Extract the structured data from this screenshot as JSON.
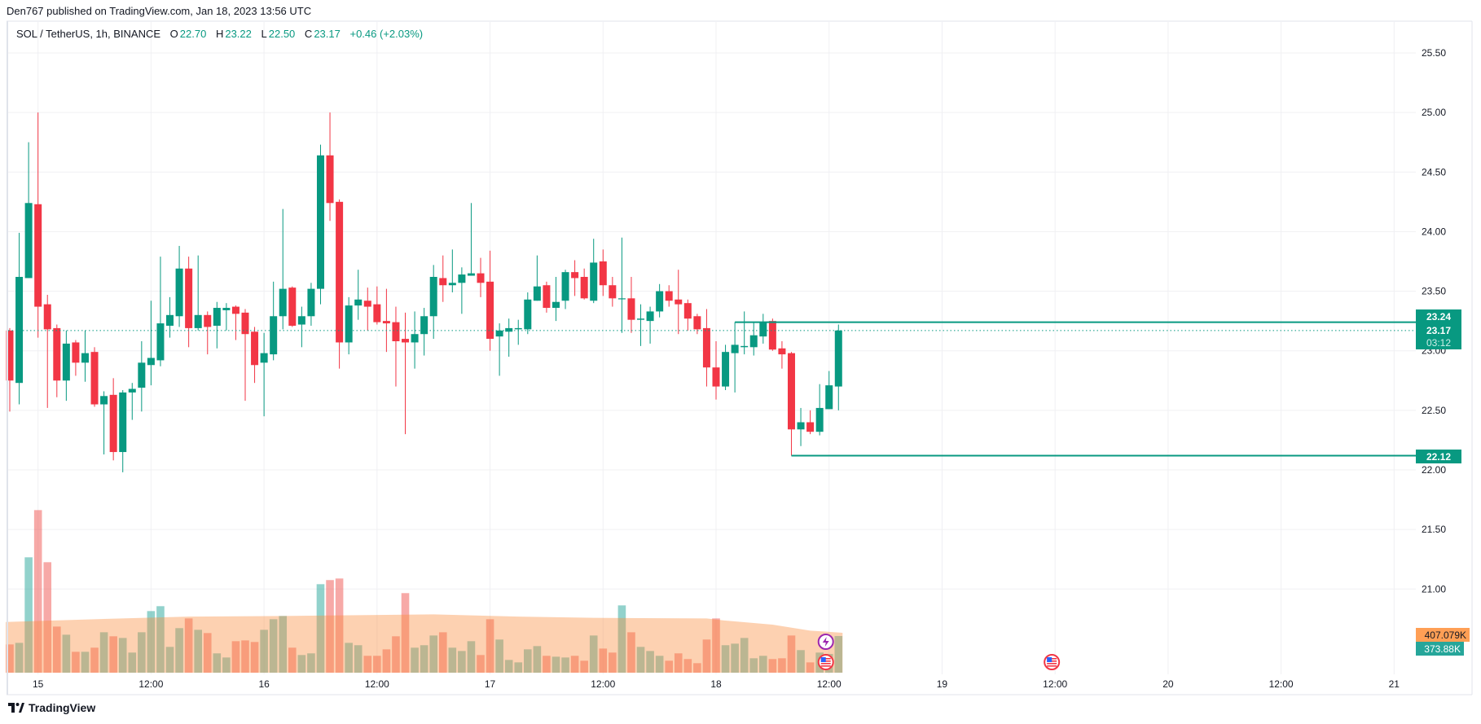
{
  "header": {
    "publisher_line": "Den767 published on TradingView.com, Jan 18, 2023 13:56 UTC"
  },
  "legend": {
    "symbol": "SOL / TetherUS, 1h, BINANCE",
    "open_key": "O",
    "open": "22.70",
    "high_key": "H",
    "high": "23.22",
    "low_key": "L",
    "low": "22.50",
    "close_key": "C",
    "close": "23.17",
    "change": "+0.46 (+2.03%)"
  },
  "price_labels": {
    "level_high": "23.24",
    "last_price": "23.17",
    "countdown": "03:12",
    "level_low": "22.12",
    "volume_ma": "407.079K",
    "volume_last": "373.88K"
  },
  "footer": {
    "brand": "TradingView"
  },
  "colors": {
    "up": "#089981",
    "down": "#f23645",
    "volume_up": "#26a69a",
    "volume_down": "#ef5350",
    "volume_ma_fill": "#fb8c3c",
    "label_ma": "#ff9f55",
    "label_volume": "#26a69a",
    "grid": "#f0f0f3"
  },
  "chart_data": {
    "type": "candlestick",
    "symbol": "SOL / TetherUS",
    "interval": "1h",
    "start_time": "2023-01-14 21:00",
    "ylim": [
      20.4,
      25.9
    ],
    "y_ticks": [
      "25.50",
      "25.00",
      "24.50",
      "24.00",
      "23.50",
      "23.00",
      "22.50",
      "22.00",
      "21.50",
      "21.00"
    ],
    "x_ticks": [
      {
        "t": "2023-01-15 00:00",
        "label": "15"
      },
      {
        "t": "2023-01-15 12:00",
        "label": "12:00"
      },
      {
        "t": "2023-01-16 00:00",
        "label": "16"
      },
      {
        "t": "2023-01-16 12:00",
        "label": "12:00"
      },
      {
        "t": "2023-01-17 00:00",
        "label": "17"
      },
      {
        "t": "2023-01-17 12:00",
        "label": "12:00"
      },
      {
        "t": "2023-01-18 00:00",
        "label": "18"
      },
      {
        "t": "2023-01-18 12:00",
        "label": "12:00"
      },
      {
        "t": "2023-01-19 00:00",
        "label": "19"
      },
      {
        "t": "2023-01-19 12:00",
        "label": "12:00"
      },
      {
        "t": "2023-01-20 00:00",
        "label": "20"
      },
      {
        "t": "2023-01-20 12:00",
        "label": "12:00"
      },
      {
        "t": "2023-01-21 00:00",
        "label": "21"
      }
    ],
    "grid": true,
    "ohlc": [
      [
        23.17,
        23.19,
        22.49,
        22.75
      ],
      [
        22.73,
        23.99,
        22.55,
        23.62
      ],
      [
        23.61,
        24.75,
        23.61,
        24.24
      ],
      [
        24.23,
        25.0,
        23.11,
        23.37
      ],
      [
        23.39,
        23.47,
        22.52,
        23.18
      ],
      [
        23.19,
        23.22,
        22.61,
        22.75
      ],
      [
        22.75,
        23.17,
        22.58,
        23.06
      ],
      [
        23.07,
        23.09,
        22.79,
        22.9
      ],
      [
        22.9,
        23.17,
        22.74,
        22.98
      ],
      [
        22.99,
        23.03,
        22.53,
        22.55
      ],
      [
        22.55,
        22.66,
        22.13,
        22.62
      ],
      [
        22.63,
        22.77,
        22.08,
        22.15
      ],
      [
        22.15,
        22.67,
        21.98,
        22.65
      ],
      [
        22.65,
        22.73,
        22.42,
        22.68
      ],
      [
        22.69,
        23.08,
        22.49,
        22.9
      ],
      [
        22.88,
        23.42,
        22.71,
        22.94
      ],
      [
        22.92,
        23.79,
        22.87,
        23.23
      ],
      [
        23.21,
        23.45,
        23.11,
        23.3
      ],
      [
        23.29,
        23.88,
        23.2,
        23.69
      ],
      [
        23.69,
        23.79,
        23.03,
        23.19
      ],
      [
        23.19,
        23.8,
        23.17,
        23.3
      ],
      [
        23.3,
        23.33,
        22.97,
        23.2
      ],
      [
        23.21,
        23.41,
        23.02,
        23.36
      ],
      [
        23.34,
        23.4,
        23.17,
        23.36
      ],
      [
        23.37,
        23.38,
        23.09,
        23.31
      ],
      [
        23.32,
        23.35,
        22.58,
        23.14
      ],
      [
        23.16,
        23.2,
        22.73,
        22.88
      ],
      [
        22.9,
        23.15,
        22.45,
        22.98
      ],
      [
        22.97,
        23.58,
        22.92,
        23.29
      ],
      [
        23.29,
        24.19,
        23.18,
        23.52
      ],
      [
        23.53,
        23.54,
        23.2,
        23.21
      ],
      [
        23.22,
        23.37,
        23.03,
        23.29
      ],
      [
        23.29,
        23.57,
        23.21,
        23.52
      ],
      [
        23.52,
        24.73,
        23.39,
        24.64
      ],
      [
        24.64,
        25.0,
        24.09,
        24.24
      ],
      [
        24.25,
        24.27,
        22.85,
        23.07
      ],
      [
        23.07,
        23.45,
        22.97,
        23.38
      ],
      [
        23.38,
        23.68,
        23.26,
        23.43
      ],
      [
        23.42,
        23.53,
        23.17,
        23.37
      ],
      [
        23.39,
        23.54,
        23.22,
        23.24
      ],
      [
        23.25,
        23.52,
        22.99,
        23.23
      ],
      [
        23.24,
        23.37,
        22.7,
        23.08
      ],
      [
        23.1,
        23.32,
        22.3,
        23.07
      ],
      [
        23.07,
        23.33,
        22.85,
        23.14
      ],
      [
        23.14,
        23.36,
        22.96,
        23.29
      ],
      [
        23.29,
        23.72,
        23.1,
        23.62
      ],
      [
        23.61,
        23.8,
        23.41,
        23.55
      ],
      [
        23.55,
        23.85,
        23.49,
        23.57
      ],
      [
        23.57,
        23.7,
        23.31,
        23.64
      ],
      [
        23.63,
        24.24,
        23.63,
        23.65
      ],
      [
        23.65,
        23.78,
        23.45,
        23.57
      ],
      [
        23.58,
        23.84,
        23.0,
        23.1
      ],
      [
        23.12,
        23.23,
        22.79,
        23.17
      ],
      [
        23.16,
        23.27,
        22.95,
        23.19
      ],
      [
        23.18,
        23.26,
        23.05,
        23.19
      ],
      [
        23.18,
        23.49,
        23.14,
        23.43
      ],
      [
        23.42,
        23.8,
        23.42,
        23.54
      ],
      [
        23.55,
        23.58,
        23.32,
        23.36
      ],
      [
        23.36,
        23.62,
        23.25,
        23.41
      ],
      [
        23.42,
        23.68,
        23.35,
        23.66
      ],
      [
        23.66,
        23.76,
        23.46,
        23.61
      ],
      [
        23.62,
        23.69,
        23.43,
        23.44
      ],
      [
        23.42,
        23.94,
        23.4,
        23.74
      ],
      [
        23.75,
        23.85,
        23.46,
        23.55
      ],
      [
        23.55,
        23.62,
        23.37,
        23.44
      ],
      [
        23.44,
        23.95,
        23.15,
        23.44
      ],
      [
        23.44,
        23.62,
        23.15,
        23.26
      ],
      [
        23.26,
        23.39,
        23.04,
        23.27
      ],
      [
        23.25,
        23.37,
        23.06,
        23.33
      ],
      [
        23.33,
        23.56,
        23.28,
        23.5
      ],
      [
        23.5,
        23.55,
        23.37,
        23.42
      ],
      [
        23.43,
        23.68,
        23.14,
        23.39
      ],
      [
        23.4,
        23.43,
        23.17,
        23.27
      ],
      [
        23.29,
        23.31,
        23.14,
        23.18
      ],
      [
        23.19,
        23.35,
        22.7,
        22.86
      ],
      [
        22.86,
        23.08,
        22.59,
        22.7
      ],
      [
        22.7,
        23.05,
        22.67,
        22.99
      ],
      [
        22.98,
        23.24,
        22.65,
        23.05
      ],
      [
        23.03,
        23.33,
        22.97,
        23.04
      ],
      [
        23.03,
        23.24,
        22.96,
        23.13
      ],
      [
        23.12,
        23.31,
        23.06,
        23.24
      ],
      [
        23.25,
        23.27,
        23.0,
        23.01
      ],
      [
        23.02,
        23.08,
        22.85,
        22.97
      ],
      [
        22.98,
        22.99,
        22.12,
        22.34
      ],
      [
        22.34,
        22.52,
        22.2,
        22.4
      ],
      [
        22.4,
        22.5,
        22.3,
        22.32
      ],
      [
        22.32,
        22.72,
        22.29,
        22.52
      ],
      [
        22.51,
        22.83,
        22.51,
        22.71
      ],
      [
        22.7,
        23.22,
        22.5,
        23.17
      ]
    ],
    "volume_k": [
      288,
      304,
      1176,
      1657,
      1126,
      470,
      387,
      213,
      213,
      255,
      412,
      371,
      354,
      205,
      412,
      628,
      678,
      263,
      454,
      553,
      437,
      404,
      197,
      155,
      321,
      329,
      313,
      437,
      545,
      578,
      255,
      180,
      197,
      902,
      944,
      960,
      304,
      280,
      172,
      172,
      238,
      371,
      811,
      255,
      280,
      379,
      412,
      255,
      221,
      321,
      180,
      545,
      338,
      130,
      105,
      238,
      271,
      172,
      163,
      155,
      172,
      122,
      379,
      246,
      205,
      686,
      412,
      263,
      221,
      172,
      122,
      197,
      139,
      97,
      338,
      553,
      280,
      296,
      354,
      147,
      172,
      139,
      147,
      379,
      230,
      105,
      205,
      191,
      373.88
    ],
    "volume_ma_k": [
      [
        0,
        517
      ],
      [
        9,
        545
      ],
      [
        19,
        572
      ],
      [
        29,
        578
      ],
      [
        35,
        584
      ],
      [
        43,
        592
      ],
      [
        45,
        595
      ],
      [
        54,
        572
      ],
      [
        62,
        559
      ],
      [
        74,
        553
      ],
      [
        76,
        531
      ],
      [
        81,
        490
      ],
      [
        85,
        429
      ],
      [
        88,
        407.079
      ]
    ],
    "last_price": 23.17,
    "levels": [
      {
        "price": 23.24,
        "from_candle": 77
      },
      {
        "price": 22.12,
        "from_candle": 83
      }
    ],
    "events": [
      {
        "type": "lightning-icon",
        "t": "2023-01-18 12:00",
        "row": 0
      },
      {
        "type": "us-flag-icon",
        "t": "2023-01-18 12:00",
        "row": 1
      },
      {
        "type": "us-flag-icon",
        "t": "2023-01-19 12:00",
        "row": 1
      }
    ]
  }
}
